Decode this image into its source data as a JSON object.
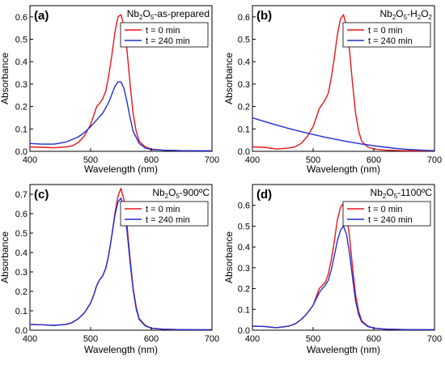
{
  "chart_data": [
    {
      "type": "line",
      "panel_label": "(a)",
      "sample_label": {
        "base": "Nb",
        "s1": "2",
        "mid": "O",
        "s2": "5",
        "tail": "-as-prepared"
      },
      "xlabel": "Wavelength (nm)",
      "ylabel": "Absorbance",
      "xlim": [
        400,
        700
      ],
      "ylim": [
        0,
        0.65
      ],
      "xticks": [
        400,
        500,
        600,
        700
      ],
      "yticks": [
        0.0,
        0.1,
        0.2,
        0.3,
        0.4,
        0.5,
        0.6
      ],
      "ytick_decimals": 1,
      "legend_position": "top-right",
      "series": [
        {
          "name": "t = 0 min",
          "color": "#e8141b",
          "x": [
            400,
            420,
            440,
            460,
            470,
            480,
            490,
            500,
            505,
            510,
            515,
            520,
            525,
            530,
            535,
            540,
            545,
            550,
            555,
            560,
            565,
            570,
            575,
            580,
            590,
            600,
            620,
            650,
            700
          ],
          "y": [
            0.02,
            0.018,
            0.016,
            0.02,
            0.025,
            0.04,
            0.07,
            0.12,
            0.16,
            0.2,
            0.215,
            0.235,
            0.27,
            0.34,
            0.43,
            0.53,
            0.6,
            0.61,
            0.56,
            0.45,
            0.3,
            0.17,
            0.09,
            0.045,
            0.02,
            0.01,
            0.005,
            0.003,
            0.002
          ]
        },
        {
          "name": "t = 240 min",
          "color": "#1f2fd0",
          "x": [
            400,
            420,
            440,
            460,
            480,
            490,
            500,
            510,
            520,
            530,
            535,
            540,
            545,
            550,
            555,
            560,
            565,
            570,
            580,
            590,
            600,
            620,
            650,
            700
          ],
          "y": [
            0.035,
            0.032,
            0.032,
            0.042,
            0.065,
            0.085,
            0.11,
            0.14,
            0.17,
            0.22,
            0.255,
            0.29,
            0.31,
            0.31,
            0.28,
            0.22,
            0.15,
            0.09,
            0.035,
            0.015,
            0.008,
            0.005,
            0.003,
            0.002
          ]
        }
      ]
    },
    {
      "type": "line",
      "panel_label": "(b)",
      "sample_label": {
        "base": "Nb",
        "s1": "2",
        "mid": "O",
        "s2": "5",
        "tail": "-H",
        "s3": "2",
        "tail2": "O",
        "s4": "2"
      },
      "xlabel": "Wavelength (nm)",
      "ylabel": "Absorbance",
      "xlim": [
        400,
        700
      ],
      "ylim": [
        0,
        0.65
      ],
      "xticks": [
        400,
        500,
        600,
        700
      ],
      "yticks": [
        0.0,
        0.1,
        0.2,
        0.3,
        0.4,
        0.5,
        0.6
      ],
      "ytick_decimals": 1,
      "legend_position": "top-right",
      "series": [
        {
          "name": "t = 0 min",
          "color": "#e8141b",
          "x": [
            400,
            420,
            440,
            460,
            470,
            480,
            490,
            500,
            505,
            510,
            515,
            520,
            525,
            530,
            535,
            540,
            545,
            550,
            555,
            560,
            565,
            570,
            575,
            580,
            590,
            600,
            620,
            650,
            700
          ],
          "y": [
            0.02,
            0.018,
            0.01,
            0.015,
            0.02,
            0.035,
            0.065,
            0.11,
            0.15,
            0.19,
            0.21,
            0.23,
            0.26,
            0.33,
            0.42,
            0.52,
            0.59,
            0.61,
            0.56,
            0.45,
            0.3,
            0.17,
            0.09,
            0.045,
            0.02,
            0.01,
            0.005,
            0.003,
            0.002
          ]
        },
        {
          "name": "t = 240 min",
          "color": "#1f2fd0",
          "x": [
            400,
            420,
            440,
            460,
            480,
            500,
            520,
            540,
            560,
            580,
            600,
            620,
            640,
            660,
            680,
            700
          ],
          "y": [
            0.15,
            0.133,
            0.117,
            0.102,
            0.088,
            0.075,
            0.063,
            0.052,
            0.042,
            0.033,
            0.025,
            0.018,
            0.012,
            0.008,
            0.005,
            0.003
          ]
        }
      ]
    },
    {
      "type": "line",
      "panel_label": "(c)",
      "sample_label": {
        "base": "Nb",
        "s1": "2",
        "mid": "O",
        "s2": "5",
        "tail": "-900ºC"
      },
      "xlabel": "Wavelength (nm)",
      "ylabel": "Absorbance",
      "xlim": [
        400,
        700
      ],
      "ylim": [
        0,
        0.75
      ],
      "xticks": [
        400,
        500,
        600,
        700
      ],
      "yticks": [
        0.0,
        0.1,
        0.2,
        0.3,
        0.4,
        0.5,
        0.6,
        0.7
      ],
      "ytick_decimals": 1,
      "legend_position": "top-right",
      "series": [
        {
          "name": "t = 0 min",
          "color": "#e8141b",
          "x": [
            400,
            420,
            440,
            460,
            470,
            480,
            490,
            500,
            505,
            510,
            515,
            520,
            525,
            530,
            535,
            540,
            545,
            550,
            555,
            560,
            565,
            570,
            575,
            580,
            590,
            600,
            620,
            650,
            700
          ],
          "y": [
            0.03,
            0.028,
            0.025,
            0.03,
            0.04,
            0.06,
            0.09,
            0.14,
            0.18,
            0.23,
            0.26,
            0.28,
            0.32,
            0.39,
            0.49,
            0.6,
            0.69,
            0.73,
            0.67,
            0.54,
            0.37,
            0.22,
            0.12,
            0.06,
            0.025,
            0.01,
            0.005,
            0.003,
            0.002
          ]
        },
        {
          "name": "t = 240 min",
          "color": "#1f2fd0",
          "x": [
            400,
            420,
            440,
            460,
            470,
            480,
            490,
            500,
            505,
            510,
            515,
            520,
            525,
            530,
            535,
            540,
            545,
            550,
            555,
            560,
            565,
            570,
            575,
            580,
            590,
            600,
            620,
            650,
            700
          ],
          "y": [
            0.03,
            0.028,
            0.025,
            0.03,
            0.04,
            0.06,
            0.09,
            0.14,
            0.18,
            0.23,
            0.26,
            0.28,
            0.32,
            0.39,
            0.49,
            0.59,
            0.66,
            0.68,
            0.63,
            0.51,
            0.35,
            0.21,
            0.11,
            0.055,
            0.022,
            0.01,
            0.005,
            0.003,
            0.002
          ]
        }
      ]
    },
    {
      "type": "line",
      "panel_label": "(d)",
      "sample_label": {
        "base": "Nb",
        "s1": "2",
        "mid": "O",
        "s2": "5",
        "tail": "-1100ºC"
      },
      "xlabel": "Wavelength (nm)",
      "ylabel": "Absorbance",
      "xlim": [
        400,
        700
      ],
      "ylim": [
        0,
        0.7
      ],
      "xticks": [
        400,
        500,
        600,
        700
      ],
      "yticks": [
        0.0,
        0.1,
        0.2,
        0.3,
        0.4,
        0.5,
        0.6
      ],
      "ytick_decimals": 1,
      "legend_position": "top-right",
      "series": [
        {
          "name": "t = 0 min",
          "color": "#e8141b",
          "x": [
            400,
            420,
            440,
            460,
            470,
            480,
            490,
            500,
            505,
            510,
            515,
            520,
            525,
            530,
            535,
            540,
            545,
            550,
            555,
            560,
            565,
            570,
            575,
            580,
            590,
            600,
            620,
            650,
            700
          ],
          "y": [
            0.02,
            0.018,
            0.012,
            0.02,
            0.03,
            0.05,
            0.08,
            0.12,
            0.16,
            0.2,
            0.215,
            0.23,
            0.27,
            0.34,
            0.43,
            0.53,
            0.59,
            0.61,
            0.56,
            0.45,
            0.3,
            0.17,
            0.09,
            0.045,
            0.02,
            0.01,
            0.005,
            0.003,
            0.002
          ]
        },
        {
          "name": "t = 240 min",
          "color": "#1f2fd0",
          "x": [
            400,
            420,
            440,
            460,
            470,
            480,
            490,
            500,
            505,
            510,
            515,
            520,
            525,
            530,
            535,
            540,
            545,
            550,
            555,
            560,
            565,
            570,
            575,
            580,
            590,
            600,
            620,
            650,
            700
          ],
          "y": [
            0.02,
            0.018,
            0.012,
            0.02,
            0.03,
            0.05,
            0.08,
            0.12,
            0.15,
            0.18,
            0.2,
            0.215,
            0.24,
            0.29,
            0.36,
            0.43,
            0.48,
            0.5,
            0.46,
            0.37,
            0.25,
            0.14,
            0.075,
            0.04,
            0.018,
            0.01,
            0.005,
            0.003,
            0.002
          ]
        }
      ]
    }
  ]
}
